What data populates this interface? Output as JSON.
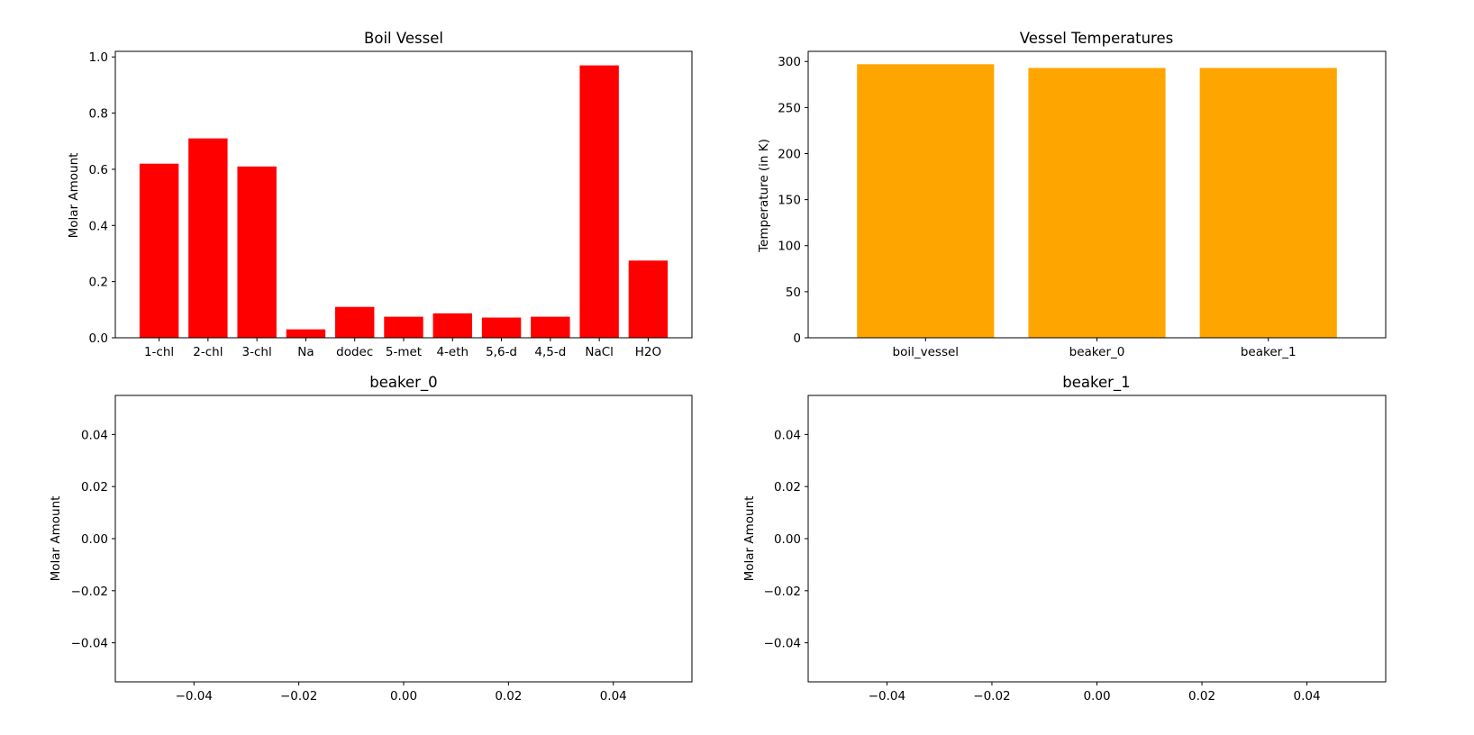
{
  "chart_data": [
    {
      "type": "bar",
      "title": "Boil Vessel",
      "xlabel": "",
      "ylabel": "Molar Amount",
      "categories": [
        "1-chl",
        "2-chl",
        "3-chl",
        "Na",
        "dodec",
        "5-met",
        "4-eth",
        "5,6-d",
        "4,5-d",
        "NaCl",
        "H2O"
      ],
      "values": [
        0.62,
        0.71,
        0.61,
        0.03,
        0.11,
        0.075,
        0.087,
        0.072,
        0.075,
        0.97,
        0.275
      ],
      "ylim": [
        0,
        1.02
      ],
      "yticks": [
        "0.0",
        "0.2",
        "0.4",
        "0.6",
        "0.8",
        "1.0"
      ],
      "color": "#ff0000",
      "grid": false
    },
    {
      "type": "bar",
      "title": "Vessel Temperatures",
      "xlabel": "",
      "ylabel": "Temperature (in K)",
      "categories": [
        "boil_vessel",
        "beaker_0",
        "beaker_1"
      ],
      "values": [
        297,
        293,
        293
      ],
      "ylim": [
        0,
        311
      ],
      "yticks": [
        "0",
        "50",
        "100",
        "150",
        "200",
        "250",
        "300"
      ],
      "color": "#ffa500",
      "grid": false
    },
    {
      "type": "bar",
      "title": "beaker_0",
      "xlabel": "",
      "ylabel": "Molar Amount",
      "categories": [],
      "values": [],
      "xlim": [
        -0.055,
        0.055
      ],
      "ylim": [
        -0.055,
        0.055
      ],
      "xticks": [
        "−0.04",
        "−0.02",
        "0.00",
        "0.02",
        "0.04"
      ],
      "yticks": [
        "−0.04",
        "−0.02",
        "0.00",
        "0.02",
        "0.04"
      ],
      "grid": false
    },
    {
      "type": "bar",
      "title": "beaker_1",
      "xlabel": "",
      "ylabel": "Molar Amount",
      "categories": [],
      "values": [],
      "xlim": [
        -0.055,
        0.055
      ],
      "ylim": [
        -0.055,
        0.055
      ],
      "xticks": [
        "−0.04",
        "−0.02",
        "0.00",
        "0.02",
        "0.04"
      ],
      "yticks": [
        "−0.04",
        "−0.02",
        "0.00",
        "0.02",
        "0.04"
      ],
      "grid": false
    }
  ]
}
